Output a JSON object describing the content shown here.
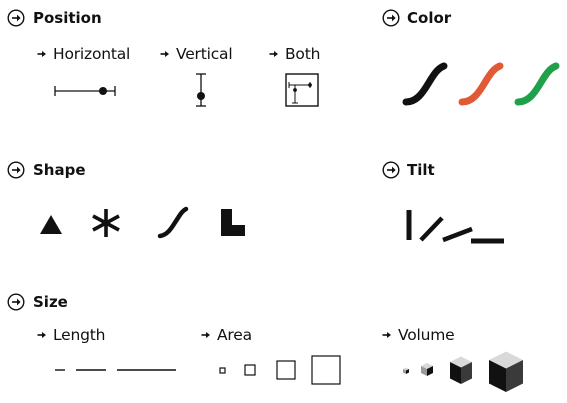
{
  "position": {
    "title": "Position",
    "horizontal": "Horizontal",
    "vertical": "Vertical",
    "both": "Both"
  },
  "color": {
    "title": "Color",
    "swatches": [
      "#111111",
      "#e05a35",
      "#20a04a"
    ]
  },
  "shape": {
    "title": "Shape"
  },
  "tilt": {
    "title": "Tilt"
  },
  "size": {
    "title": "Size",
    "length": "Length",
    "area": "Area",
    "volume": "Volume"
  }
}
